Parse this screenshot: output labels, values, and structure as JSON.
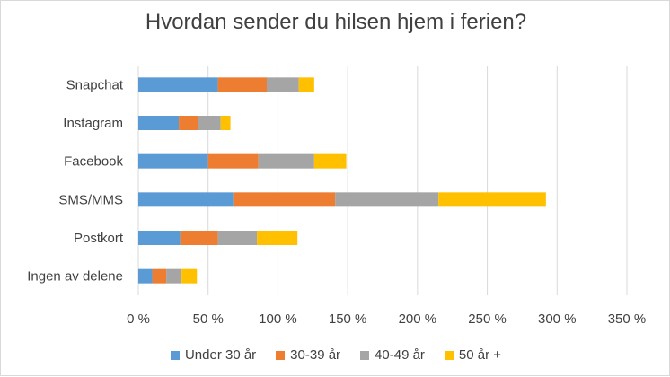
{
  "chart_data": {
    "type": "bar",
    "orientation": "horizontal",
    "stacked": true,
    "title": "Hvordan sender du hilsen hjem i ferien?",
    "categories": [
      "Snapchat",
      "Instagram",
      "Facebook",
      "SMS/MMS",
      "Postkort",
      "Ingen av delene"
    ],
    "x_ticks": [
      "0 %",
      "50 %",
      "100 %",
      "150 %",
      "200 %",
      "250 %",
      "300 %",
      "350 %"
    ],
    "xlim": [
      0,
      350
    ],
    "grid": true,
    "legend_position": "bottom",
    "series": [
      {
        "name": "Under 30 år",
        "color": "#5B9BD5",
        "values": [
          57,
          29,
          50,
          68,
          30,
          10
        ]
      },
      {
        "name": "30-39 år",
        "color": "#ED7D31",
        "values": [
          35,
          14,
          36,
          73,
          27,
          10
        ]
      },
      {
        "name": "40-49 år",
        "color": "#A5A5A5",
        "values": [
          23,
          16,
          40,
          74,
          28,
          11
        ]
      },
      {
        "name": "50 år +",
        "color": "#FFC000",
        "values": [
          11,
          7,
          23,
          77,
          29,
          11
        ]
      }
    ]
  }
}
